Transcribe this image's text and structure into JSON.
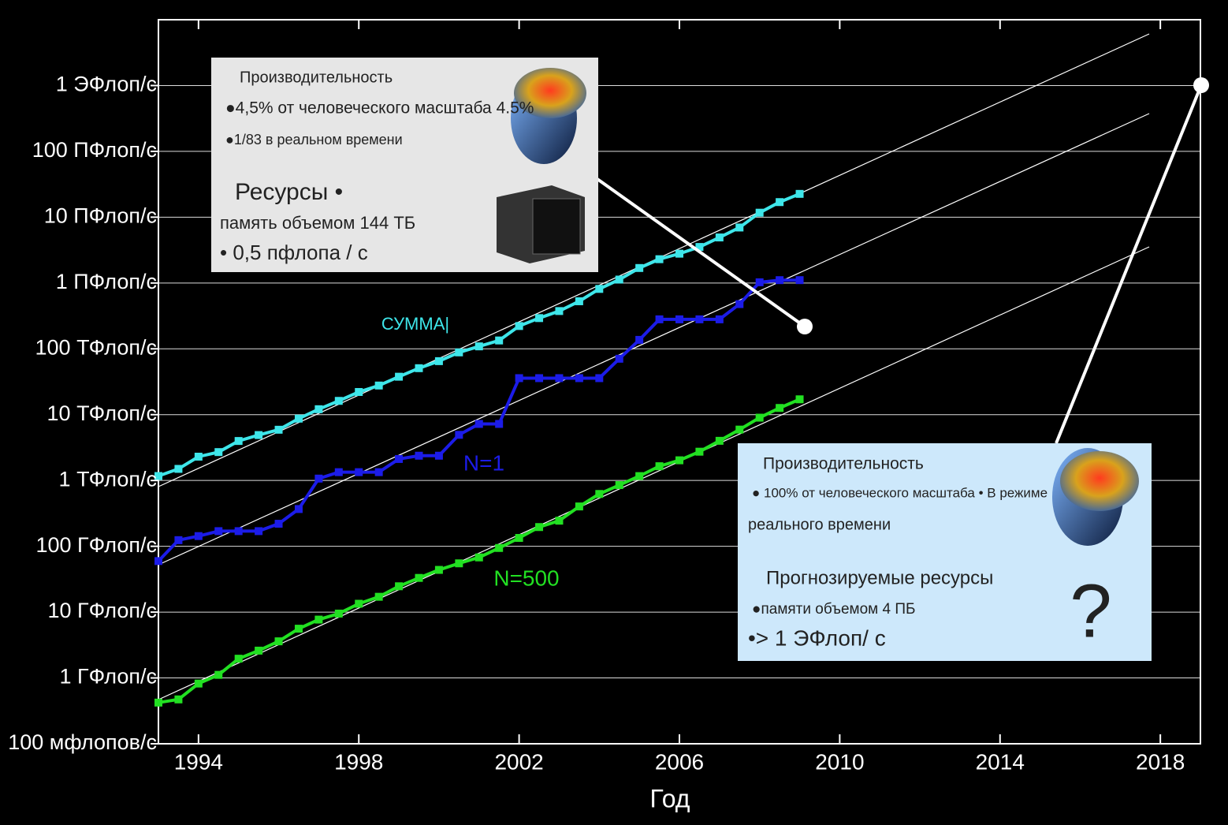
{
  "chart_data": {
    "type": "line",
    "x_label": "Год",
    "yscale": "log",
    "grid": true,
    "xlim": [
      1993,
      2019
    ],
    "xticks": [
      1994,
      1998,
      2002,
      2006,
      2010,
      2014,
      2018
    ],
    "ylim": [
      100000000.0,
      1e+19
    ],
    "yticks": [
      {
        "value": 100000000.0,
        "label": "100 мфлопов/с"
      },
      {
        "value": 1000000000.0,
        "label": "1 ГФлоп/с"
      },
      {
        "value": 10000000000.0,
        "label": "10 ГФлоп/с"
      },
      {
        "value": 100000000000.0,
        "label": "100 ГФлоп/с"
      },
      {
        "value": 1000000000000.0,
        "label": "1 ТФлоп/с"
      },
      {
        "value": 10000000000000.0,
        "label": "10 ТФлоп/с"
      },
      {
        "value": 100000000000000.0,
        "label": "100 ТФлоп/с"
      },
      {
        "value": 1000000000000000.0,
        "label": "1 ПФлоп/с"
      },
      {
        "value": 1e+16,
        "label": "10 ПФлоп/с"
      },
      {
        "value": 1e+17,
        "label": "100 ПФлоп/с"
      },
      {
        "value": 1e+18,
        "label": "1 ЭФлоп/с"
      }
    ],
    "x": [
      1993,
      1993.5,
      1994,
      1994.5,
      1995,
      1995.5,
      1996,
      1996.5,
      1997,
      1997.5,
      1998,
      1998.5,
      1999,
      1999.5,
      2000,
      2000.5,
      2001,
      2001.5,
      2002,
      2002.5,
      2003,
      2003.5,
      2004,
      2004.5,
      2005,
      2005.5,
      2006,
      2006.5,
      2007,
      2007.5,
      2008,
      2008.5,
      2009
    ],
    "series": [
      {
        "name": "СУММА|",
        "color": "#3ee6ea",
        "values": [
          1170000000000.0,
          1500000000000.0,
          2300000000000.0,
          2700000000000.0,
          3980000000000.0,
          4900000000000.0,
          5900000000000.0,
          8700000000000.0,
          12100000000000.0,
          16200000000000.0,
          22100000000000.0,
          27700000000000.0,
          37700000000000.0,
          50800000000000.0,
          65000000000000.0,
          88300000000000.0,
          109000000000000.0,
          134000000000000.0,
          222000000000000.0,
          293000000000000.0,
          375000000000000.0,
          528000000000000.0,
          813000000000000.0,
          1127000000000000.0,
          1690000000000000.0,
          2300000000000000.0,
          2790000000000000.0,
          3530000000000000.0,
          4920000000000000.0,
          6970000000000000.0,
          1.17e+16,
          1.695e+16,
          2.26e+16
        ]
      },
      {
        "name": "N=1",
        "color": "#1c1ce8",
        "values": [
          59700000000.0,
          124000000000.0,
          143000000000.0,
          170000000000.0,
          170000000000.0,
          170000000000.0,
          220000000000.0,
          368000000000.0,
          1068000000000.0,
          1338000000000.0,
          1338000000000.0,
          1338000000000.0,
          2121000000000.0,
          2379000000000.0,
          2379000000000.0,
          4938000000000.0,
          7226000000000.0,
          7226000000000.0,
          35860000000000.0,
          35860000000000.0,
          35860000000000.0,
          35860000000000.0,
          35860000000000.0,
          70720000000000.0,
          136800000000000.0,
          280600000000000.0,
          280600000000000.0,
          280600000000000.0,
          280600000000000.0,
          478200000000000.0,
          1026000000000000.0,
          1105000000000000.0,
          1105000000000000.0
        ]
      },
      {
        "name": "N=500",
        "color": "#22e022",
        "values": [
          422000000.0,
          472000000.0,
          822000000.0,
          1114000000.0,
          1960000000.0,
          2600000000.0,
          3600000000.0,
          5600000000.0,
          7700000000.0,
          9500000000.0,
          13400000000.0,
          17100000000.0,
          24700000000.0,
          33100000000.0,
          43800000000.0,
          55100000000.0,
          67800000000.0,
          94300000000.0,
          134000000000.0,
          196000000000.0,
          245000000000.0,
          403000000000.0,
          624000000000.0,
          851000000000.0,
          1166000000000.0,
          1646000000000.0,
          2026000000000.0,
          2737000000000.0,
          4005000000000.0,
          5929000000000.0,
          9000000000000.0,
          12640000000000.0,
          17100000000000.0
        ]
      }
    ],
    "annotations": [
      {
        "lines": [
          "Производительность",
          "●4,5% от человеческого масштаба 4.5%",
          "●1/83 в реальном времени",
          "Ресурсы •",
          "память объемом 144 ТБ",
          "• 0,5 пфлопа / с"
        ]
      },
      {
        "lines": [
          "Производительность",
          "● 100% от человеческого масштаба • В режиме",
          "реального времени",
          "Прогнозируемые ресурсы",
          "●памяти объемом 4 ПБ",
          "•> 1 ЭФлоп/ с",
          "?"
        ]
      }
    ]
  }
}
